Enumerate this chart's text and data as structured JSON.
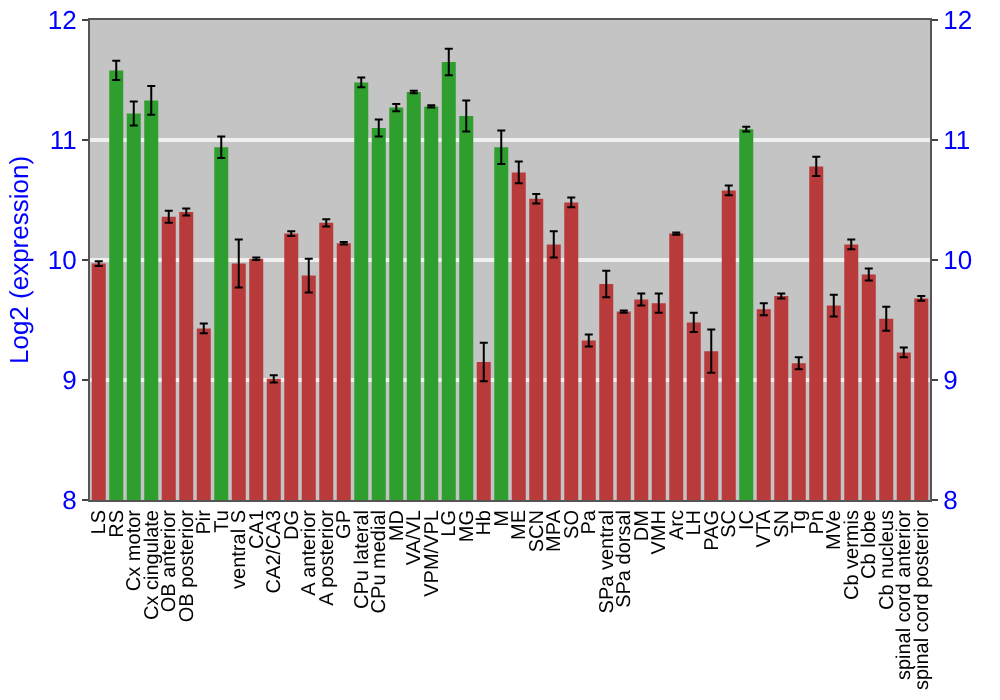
{
  "chart_data": {
    "type": "bar",
    "ylabel": "Log2 (expression)",
    "categories": [
      "LS",
      "RS",
      "Cx motor",
      "Cx cingulate",
      "OB anterior",
      "OB posterior",
      "Pir",
      "Tu",
      "ventral S",
      "CA1",
      "CA2/CA3",
      "DG",
      "A anterior",
      "A posterior",
      "GP",
      "CPu lateral",
      "CPu medial",
      "MD",
      "VA/VL",
      "VPM/VPL",
      "LG",
      "MG",
      "Hb",
      "M",
      "ME",
      "SCN",
      "MPA",
      "SO",
      "Pa",
      "SPa ventral",
      "SPa dorsal",
      "DM",
      "VMH",
      "Arc",
      "LH",
      "PAG",
      "SC",
      "IC",
      "VTA",
      "SN",
      "Tg",
      "Pn",
      "MVe",
      "Cb vermis",
      "Cb lobe",
      "Cb nucleus",
      "spinal cord anterior",
      "spinal cord posterior"
    ],
    "values": [
      9.97,
      11.58,
      11.22,
      11.33,
      10.36,
      10.4,
      9.43,
      10.94,
      9.97,
      10.01,
      9.01,
      10.22,
      9.87,
      10.31,
      10.14,
      11.48,
      11.1,
      11.27,
      11.4,
      11.28,
      11.65,
      11.2,
      9.15,
      10.94,
      10.73,
      10.51,
      10.13,
      10.48,
      9.33,
      9.8,
      9.57,
      9.67,
      9.64,
      10.22,
      9.48,
      9.24,
      10.58,
      11.09,
      9.59,
      9.7,
      9.14,
      10.78,
      9.62,
      10.13,
      9.88,
      9.51,
      9.23,
      9.68
    ],
    "errors": [
      0.02,
      0.08,
      0.1,
      0.12,
      0.05,
      0.03,
      0.04,
      0.09,
      0.2,
      0.01,
      0.03,
      0.02,
      0.14,
      0.03,
      0.01,
      0.04,
      0.07,
      0.03,
      0.01,
      0.01,
      0.11,
      0.13,
      0.16,
      0.14,
      0.09,
      0.04,
      0.11,
      0.04,
      0.05,
      0.11,
      0.01,
      0.05,
      0.08,
      0.01,
      0.08,
      0.18,
      0.04,
      0.02,
      0.05,
      0.02,
      0.05,
      0.08,
      0.09,
      0.04,
      0.05,
      0.1,
      0.04,
      0.02
    ],
    "colors": [
      "#b83a3a",
      "#2e9e2e",
      "#2e9e2e",
      "#2e9e2e",
      "#b83a3a",
      "#b83a3a",
      "#b83a3a",
      "#2e9e2e",
      "#b83a3a",
      "#b83a3a",
      "#b83a3a",
      "#b83a3a",
      "#b83a3a",
      "#b83a3a",
      "#b83a3a",
      "#2e9e2e",
      "#2e9e2e",
      "#2e9e2e",
      "#2e9e2e",
      "#2e9e2e",
      "#2e9e2e",
      "#2e9e2e",
      "#b83a3a",
      "#2e9e2e",
      "#b83a3a",
      "#b83a3a",
      "#b83a3a",
      "#b83a3a",
      "#b83a3a",
      "#b83a3a",
      "#b83a3a",
      "#b83a3a",
      "#b83a3a",
      "#b83a3a",
      "#b83a3a",
      "#b83a3a",
      "#b83a3a",
      "#2e9e2e",
      "#b83a3a",
      "#b83a3a",
      "#b83a3a",
      "#b83a3a",
      "#b83a3a",
      "#b83a3a",
      "#b83a3a",
      "#b83a3a",
      "#b83a3a",
      "#b83a3a"
    ],
    "ylim": [
      8,
      12
    ],
    "yticks": [
      8,
      9,
      10,
      11,
      12
    ],
    "y2lim": [
      8,
      12
    ],
    "y2ticks": [
      8,
      9,
      10,
      11,
      12
    ],
    "grid": "y"
  }
}
